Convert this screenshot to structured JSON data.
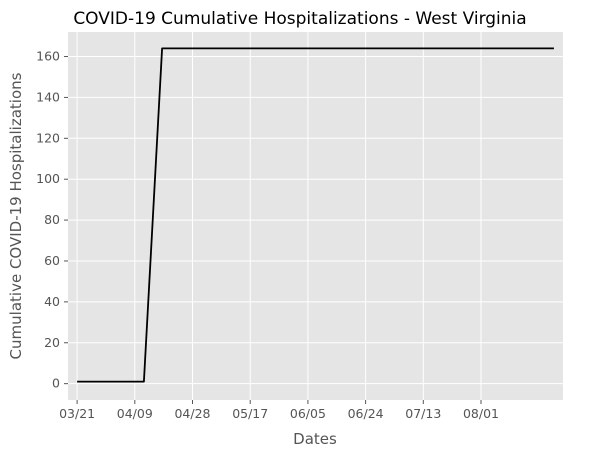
{
  "chart_data": {
    "type": "line",
    "title": "COVID-19 Cumulative Hospitalizations - West Virginia",
    "xlabel": "Dates",
    "ylabel": "Cumulative COVID-19 Hospitalizations",
    "x_tick_labels": [
      "03/21",
      "04/09",
      "04/28",
      "05/17",
      "06/05",
      "06/24",
      "07/13",
      "08/01"
    ],
    "y_ticks": [
      0,
      20,
      40,
      60,
      80,
      100,
      120,
      140,
      160
    ],
    "ylim": [
      -8,
      172
    ],
    "xlim": [
      "03/18",
      "08/28"
    ],
    "grid": true,
    "background": "#e5e5e5",
    "line_color": "#000000",
    "series": [
      {
        "x": [
          "03/21",
          "04/12",
          "04/18",
          "08/25"
        ],
        "values": [
          1,
          1,
          164,
          164
        ]
      }
    ]
  }
}
